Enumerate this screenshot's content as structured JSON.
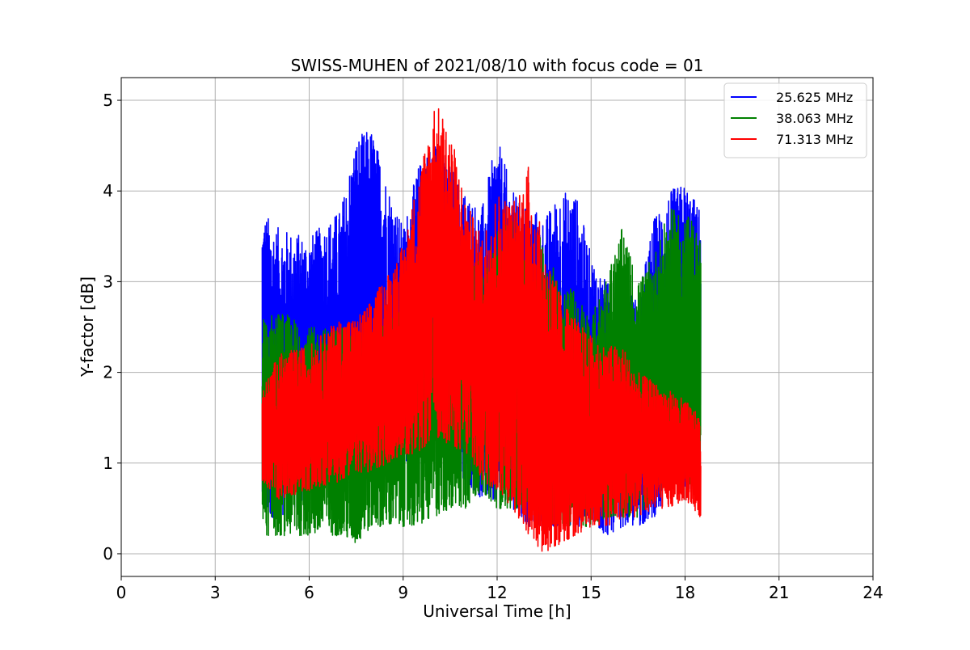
{
  "chart_data": {
    "type": "line",
    "title": "SWISS-MUHEN of 2021/08/10 with focus code = 01",
    "xlabel": "Universal Time [h]",
    "ylabel": "Y-factor [dB]",
    "xlim": [
      0,
      24
    ],
    "ylim": [
      -0.25,
      5.25
    ],
    "x_ticks": [
      0,
      3,
      6,
      9,
      12,
      15,
      18,
      21,
      24
    ],
    "x_tick_labels": [
      "0",
      "3",
      "6",
      "9",
      "12",
      "15",
      "18",
      "21",
      "24"
    ],
    "y_ticks": [
      0,
      1,
      2,
      3,
      4,
      5
    ],
    "y_tick_labels": [
      "0",
      "1",
      "2",
      "3",
      "4",
      "5"
    ],
    "grid": true,
    "legend_position": "top-right",
    "series": [
      {
        "name": "25.625 MHz",
        "color": "#0000ff",
        "x": [
          4.5,
          5,
          6,
          7,
          7.5,
          8,
          8.5,
          9,
          9.5,
          10,
          10.5,
          11,
          11.5,
          12,
          12.5,
          13,
          13.5,
          14,
          14.5,
          15,
          15.5,
          16,
          16.5,
          17,
          17.5,
          18,
          18.5
        ],
        "low": [
          0.4,
          0.4,
          0.6,
          0.8,
          0.9,
          0.9,
          1.0,
          1.0,
          1.1,
          1.1,
          1.0,
          0.8,
          0.6,
          0.6,
          0.5,
          0.3,
          0.3,
          0.3,
          0.3,
          0.3,
          0.2,
          0.3,
          0.3,
          0.4,
          0.6,
          0.7,
          0.6
        ],
        "high": [
          3.8,
          3.6,
          3.5,
          3.8,
          4.6,
          4.7,
          4.1,
          3.6,
          4.3,
          4.6,
          4.3,
          4.0,
          3.8,
          4.6,
          4.0,
          3.9,
          3.7,
          4.0,
          4.0,
          3.3,
          3.0,
          3.0,
          2.8,
          3.7,
          4.0,
          4.1,
          3.8
        ]
      },
      {
        "name": "38.063 MHz",
        "color": "#008000",
        "x": [
          4.5,
          5,
          6,
          7,
          7.5,
          8,
          8.5,
          9,
          9.5,
          10,
          10.5,
          11,
          11.5,
          12,
          12.5,
          13,
          13.5,
          14,
          14.5,
          15,
          15.5,
          16,
          16.5,
          17,
          17.5,
          18,
          18.5
        ],
        "low": [
          0.2,
          0.2,
          0.2,
          0.2,
          0.1,
          0.3,
          0.3,
          0.3,
          0.3,
          0.4,
          0.5,
          0.5,
          0.7,
          0.5,
          0.5,
          0.4,
          0.3,
          0.3,
          0.3,
          0.3,
          0.4,
          0.4,
          0.4,
          0.6,
          0.7,
          0.8,
          0.7
        ],
        "high": [
          2.6,
          2.7,
          2.5,
          2.5,
          2.4,
          2.5,
          2.6,
          2.7,
          2.9,
          3.3,
          3.6,
          3.3,
          3.2,
          3.6,
          3.7,
          3.5,
          3.5,
          3.0,
          2.9,
          2.6,
          3.1,
          3.6,
          3.0,
          3.3,
          3.8,
          3.8,
          3.5
        ]
      },
      {
        "name": "71.313 MHz",
        "color": "#ff0000",
        "x": [
          4.5,
          5,
          6,
          7,
          7.5,
          8,
          8.5,
          9,
          9.5,
          10,
          10.5,
          11,
          11.5,
          12,
          12.5,
          13,
          13.5,
          14,
          14.5,
          15,
          15.5,
          16,
          16.5,
          17,
          17.5,
          18,
          18.5
        ],
        "low": [
          0.8,
          0.6,
          0.7,
          0.8,
          0.9,
          0.9,
          1.0,
          1.1,
          1.1,
          1.3,
          1.2,
          1.1,
          0.8,
          0.7,
          0.5,
          0.2,
          0.0,
          0.1,
          0.2,
          0.3,
          0.3,
          0.4,
          0.4,
          0.5,
          0.5,
          0.6,
          0.4
        ],
        "high": [
          1.8,
          2.2,
          2.3,
          2.6,
          2.6,
          2.8,
          3.1,
          3.4,
          4.2,
          5.0,
          4.7,
          3.9,
          3.5,
          4.0,
          3.9,
          4.3,
          3.4,
          2.9,
          2.6,
          2.4,
          2.3,
          2.3,
          2.0,
          1.9,
          1.8,
          1.7,
          1.5
        ]
      }
    ]
  }
}
